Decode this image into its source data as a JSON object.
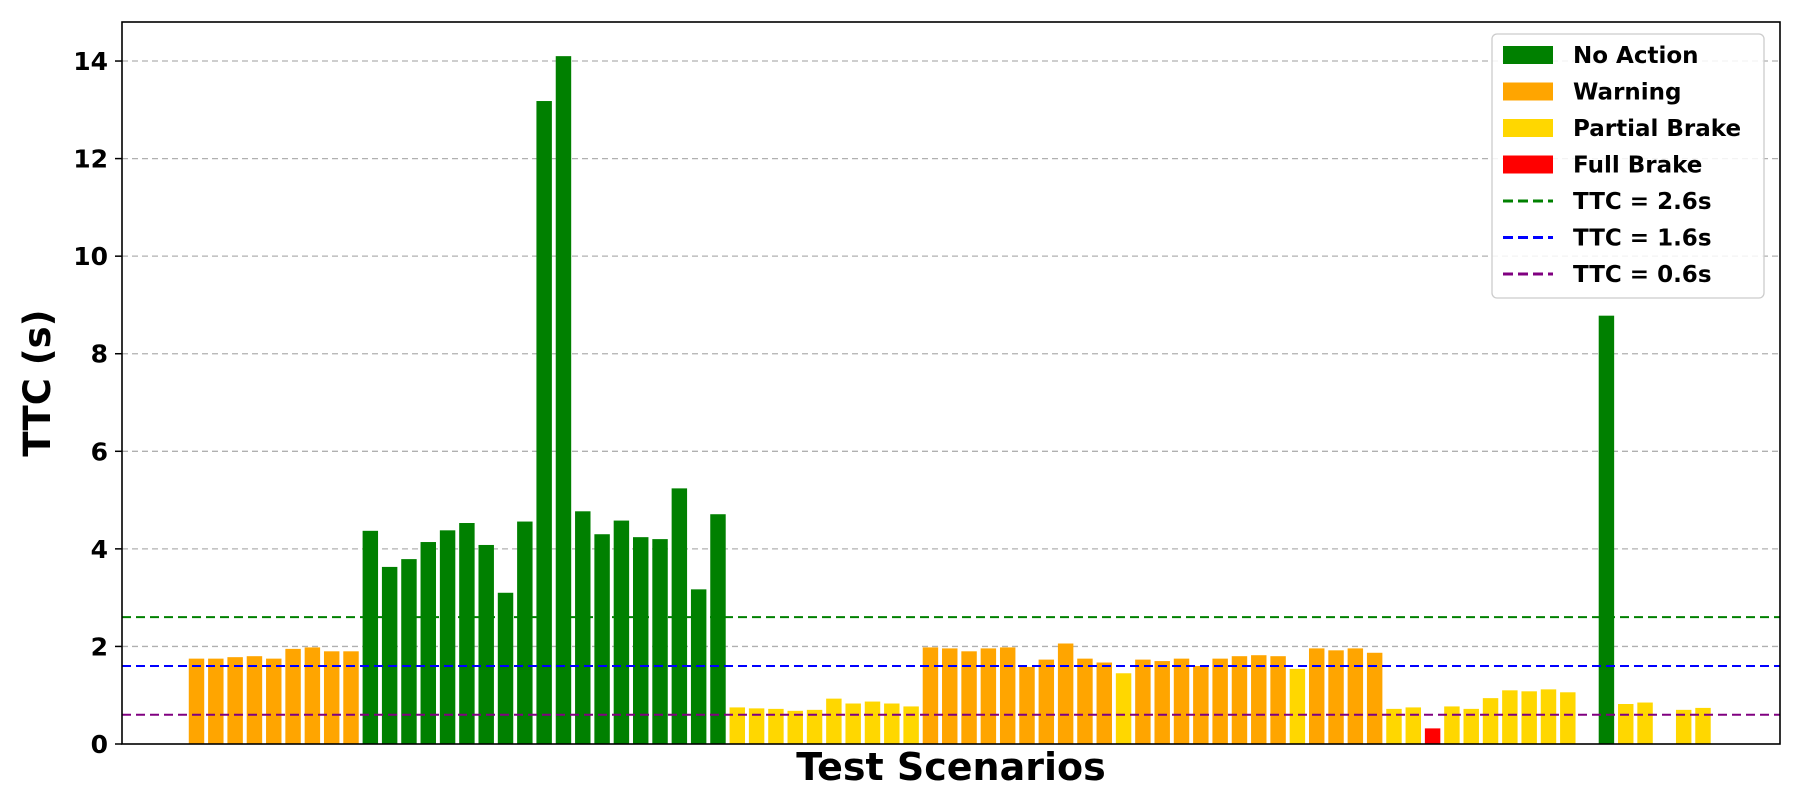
{
  "chart_data": {
    "type": "bar",
    "title": "",
    "xlabel": "Test Scenarios",
    "ylabel": "TTC (s)",
    "ylim": [
      0,
      14.8
    ],
    "yticks": [
      0,
      2,
      4,
      6,
      8,
      10,
      12,
      14
    ],
    "grid": "y-dashed",
    "legend_position": "top-right",
    "colors": {
      "No Action": "#008000",
      "Warning": "#FFA500",
      "Partial Brake": "#FFD700",
      "Full Brake": "#FF0000"
    },
    "legend": [
      {
        "label": "No Action",
        "kind": "bar",
        "color": "#008000"
      },
      {
        "label": "Warning",
        "kind": "bar",
        "color": "#FFA500"
      },
      {
        "label": "Partial Brake",
        "kind": "bar",
        "color": "#FFD700"
      },
      {
        "label": "Full Brake",
        "kind": "bar",
        "color": "#FF0000"
      },
      {
        "label": "TTC = 2.6s",
        "kind": "line",
        "color": "#008000"
      },
      {
        "label": "TTC = 1.6s",
        "kind": "line",
        "color": "#0000FF"
      },
      {
        "label": "TTC = 0.6s",
        "kind": "line",
        "color": "#800080"
      }
    ],
    "thresholds": [
      {
        "value": 2.6,
        "color": "#008000"
      },
      {
        "value": 1.6,
        "color": "#0000FF"
      },
      {
        "value": 0.6,
        "color": "#800080"
      }
    ],
    "bars": [
      {
        "v": 1.75,
        "c": "Warning"
      },
      {
        "v": 1.75,
        "c": "Warning"
      },
      {
        "v": 1.78,
        "c": "Warning"
      },
      {
        "v": 1.8,
        "c": "Warning"
      },
      {
        "v": 1.75,
        "c": "Warning"
      },
      {
        "v": 1.95,
        "c": "Warning"
      },
      {
        "v": 1.98,
        "c": "Warning"
      },
      {
        "v": 1.9,
        "c": "Warning"
      },
      {
        "v": 1.9,
        "c": "Warning"
      },
      {
        "v": 4.37,
        "c": "No Action"
      },
      {
        "v": 3.63,
        "c": "No Action"
      },
      {
        "v": 3.79,
        "c": "No Action"
      },
      {
        "v": 4.14,
        "c": "No Action"
      },
      {
        "v": 4.38,
        "c": "No Action"
      },
      {
        "v": 4.53,
        "c": "No Action"
      },
      {
        "v": 4.08,
        "c": "No Action"
      },
      {
        "v": 3.1,
        "c": "No Action"
      },
      {
        "v": 4.56,
        "c": "No Action"
      },
      {
        "v": 13.18,
        "c": "No Action"
      },
      {
        "v": 14.1,
        "c": "No Action"
      },
      {
        "v": 4.77,
        "c": "No Action"
      },
      {
        "v": 4.3,
        "c": "No Action"
      },
      {
        "v": 4.58,
        "c": "No Action"
      },
      {
        "v": 4.24,
        "c": "No Action"
      },
      {
        "v": 4.2,
        "c": "No Action"
      },
      {
        "v": 5.24,
        "c": "No Action"
      },
      {
        "v": 3.17,
        "c": "No Action"
      },
      {
        "v": 4.71,
        "c": "No Action"
      },
      {
        "v": 0.75,
        "c": "Partial Brake"
      },
      {
        "v": 0.73,
        "c": "Partial Brake"
      },
      {
        "v": 0.72,
        "c": "Partial Brake"
      },
      {
        "v": 0.68,
        "c": "Partial Brake"
      },
      {
        "v": 0.7,
        "c": "Partial Brake"
      },
      {
        "v": 0.93,
        "c": "Partial Brake"
      },
      {
        "v": 0.83,
        "c": "Partial Brake"
      },
      {
        "v": 0.87,
        "c": "Partial Brake"
      },
      {
        "v": 0.83,
        "c": "Partial Brake"
      },
      {
        "v": 0.77,
        "c": "Partial Brake"
      },
      {
        "v": 1.98,
        "c": "Warning"
      },
      {
        "v": 1.96,
        "c": "Warning"
      },
      {
        "v": 1.9,
        "c": "Warning"
      },
      {
        "v": 1.96,
        "c": "Warning"
      },
      {
        "v": 1.98,
        "c": "Warning"
      },
      {
        "v": 1.58,
        "c": "Warning"
      },
      {
        "v": 1.73,
        "c": "Warning"
      },
      {
        "v": 2.06,
        "c": "Warning"
      },
      {
        "v": 1.75,
        "c": "Warning"
      },
      {
        "v": 1.67,
        "c": "Warning"
      },
      {
        "v": 1.45,
        "c": "Partial Brake"
      },
      {
        "v": 1.73,
        "c": "Warning"
      },
      {
        "v": 1.7,
        "c": "Warning"
      },
      {
        "v": 1.75,
        "c": "Warning"
      },
      {
        "v": 1.6,
        "c": "Warning"
      },
      {
        "v": 1.75,
        "c": "Warning"
      },
      {
        "v": 1.8,
        "c": "Warning"
      },
      {
        "v": 1.82,
        "c": "Warning"
      },
      {
        "v": 1.8,
        "c": "Warning"
      },
      {
        "v": 1.54,
        "c": "Partial Brake"
      },
      {
        "v": 1.96,
        "c": "Warning"
      },
      {
        "v": 1.92,
        "c": "Warning"
      },
      {
        "v": 1.96,
        "c": "Warning"
      },
      {
        "v": 1.87,
        "c": "Warning"
      },
      {
        "v": 0.72,
        "c": "Partial Brake"
      },
      {
        "v": 0.75,
        "c": "Partial Brake"
      },
      {
        "v": 0.32,
        "c": "Full Brake"
      },
      {
        "v": 0.77,
        "c": "Partial Brake"
      },
      {
        "v": 0.72,
        "c": "Partial Brake"
      },
      {
        "v": 0.94,
        "c": "Partial Brake"
      },
      {
        "v": 1.1,
        "c": "Partial Brake"
      },
      {
        "v": 1.08,
        "c": "Partial Brake"
      },
      {
        "v": 1.12,
        "c": "Partial Brake"
      },
      {
        "v": 1.06,
        "c": "Partial Brake"
      },
      {
        "v": null,
        "c": null
      },
      {
        "v": 8.78,
        "c": "No Action"
      },
      {
        "v": 0.82,
        "c": "Partial Brake"
      },
      {
        "v": 0.85,
        "c": "Partial Brake"
      },
      {
        "v": null,
        "c": null
      },
      {
        "v": 0.7,
        "c": "Partial Brake"
      },
      {
        "v": 0.74,
        "c": "Partial Brake"
      }
    ]
  }
}
